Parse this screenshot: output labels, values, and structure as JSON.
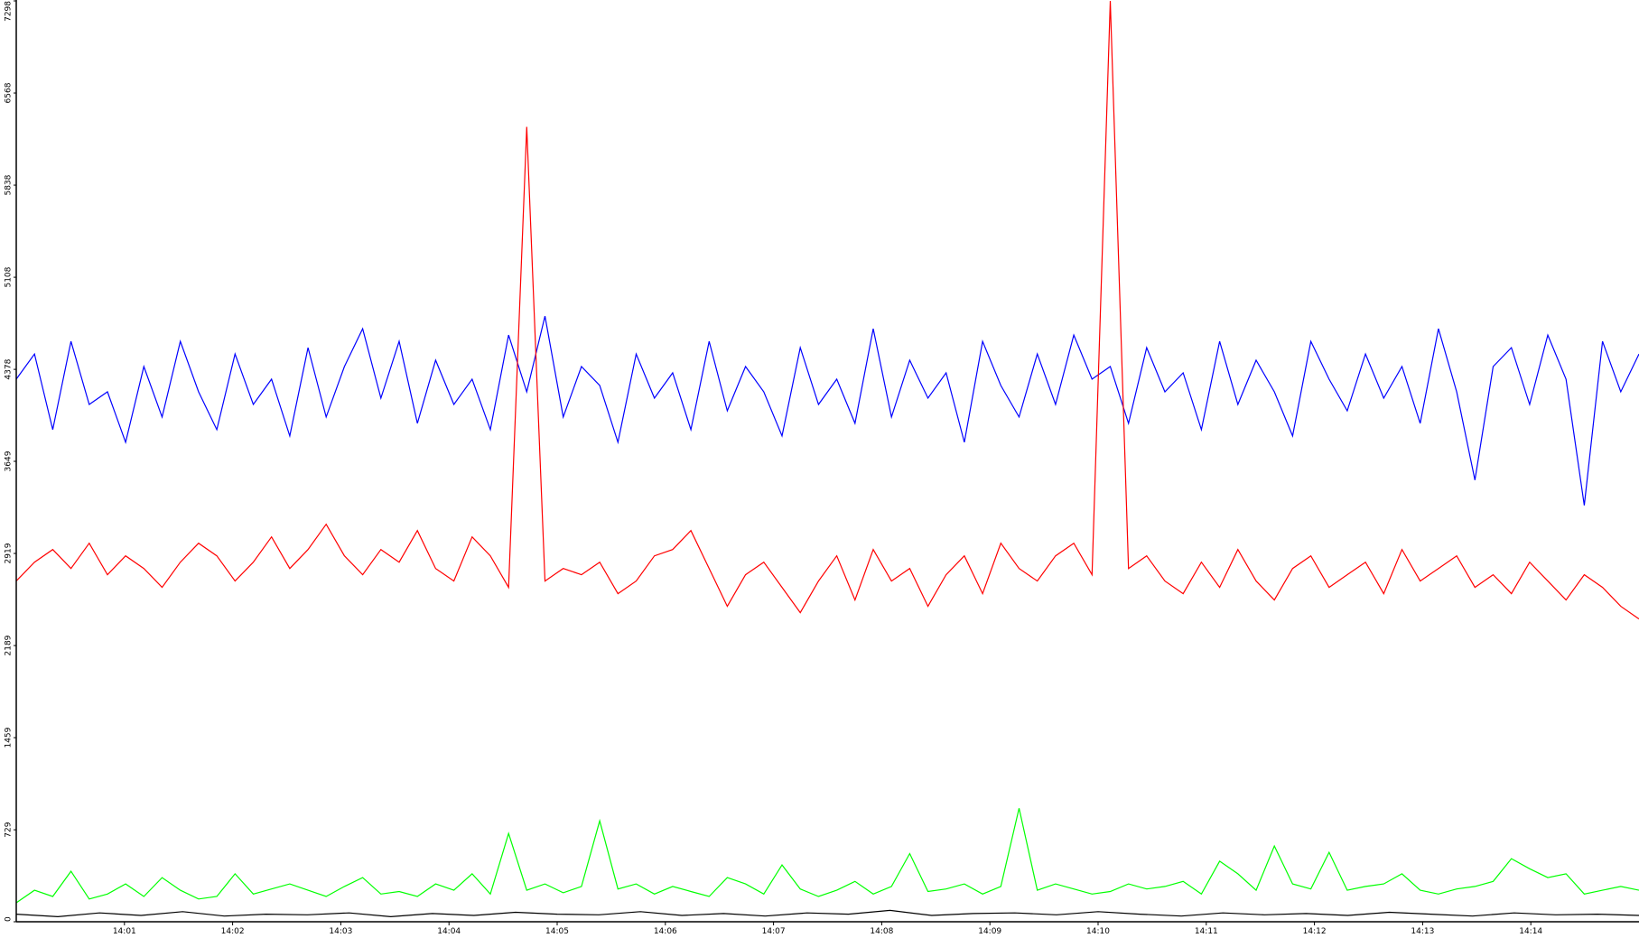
{
  "chart_data": {
    "type": "line",
    "ylim": [
      0,
      7298
    ],
    "yticks": [
      0,
      729,
      1459,
      2189,
      2919,
      3649,
      4378,
      5108,
      5838,
      6568,
      7298
    ],
    "xticks": [
      "14:01",
      "14:02",
      "14:03",
      "14:04",
      "14:05",
      "14:06",
      "14:07",
      "14:08",
      "14:09",
      "14:10",
      "14:11",
      "14:12",
      "14:13",
      "14:14"
    ],
    "series": [
      {
        "color": "#0000ff",
        "values": [
          4300,
          4500,
          3900,
          4600,
          4100,
          4200,
          3800,
          4400,
          4000,
          4600,
          4200,
          3900,
          4500,
          4100,
          4300,
          3850,
          4550,
          4000,
          4400,
          4700,
          4150,
          4600,
          3950,
          4450,
          4100,
          4300,
          3900,
          4650,
          4200,
          4800,
          4000,
          4400,
          4250,
          3800,
          4500,
          4150,
          4350,
          3900,
          4600,
          4050,
          4400,
          4200,
          3850,
          4550,
          4100,
          4300,
          3950,
          4700,
          4000,
          4450,
          4150,
          4350,
          3800,
          4600,
          4250,
          4000,
          4500,
          4100,
          4650,
          4300,
          4400,
          3950,
          4550,
          4200,
          4350,
          3900,
          4600,
          4100,
          4450,
          4200,
          3850,
          4600,
          4300,
          4050,
          4500,
          4150,
          4400,
          3950,
          4700,
          4200,
          3500,
          4400,
          4550,
          4100,
          4650,
          4300,
          3300,
          4600,
          4200,
          4500
        ]
      },
      {
        "color": "#ff0000",
        "values": [
          2700,
          2850,
          2950,
          2800,
          3000,
          2750,
          2900,
          2800,
          2650,
          2850,
          3000,
          2900,
          2700,
          2850,
          3050,
          2800,
          2950,
          3150,
          2900,
          2750,
          2950,
          2850,
          3100,
          2800,
          2700,
          3050,
          2900,
          2650,
          6300,
          2700,
          2800,
          2750,
          2850,
          2600,
          2700,
          2900,
          2950,
          3100,
          2800,
          2500,
          2750,
          2850,
          2650,
          2450,
          2700,
          2900,
          2550,
          2950,
          2700,
          2800,
          2500,
          2750,
          2900,
          2600,
          3000,
          2800,
          2700,
          2900,
          3000,
          2750,
          7298,
          2800,
          2900,
          2700,
          2600,
          2850,
          2650,
          2950,
          2700,
          2550,
          2800,
          2900,
          2650,
          2750,
          2850,
          2600,
          2950,
          2700,
          2800,
          2900,
          2650,
          2750,
          2600,
          2850,
          2700,
          2550,
          2750,
          2650,
          2500,
          2400
        ]
      },
      {
        "color": "#00ff00",
        "values": [
          150,
          250,
          200,
          400,
          180,
          220,
          300,
          200,
          350,
          250,
          180,
          200,
          380,
          220,
          260,
          300,
          250,
          200,
          280,
          350,
          220,
          240,
          200,
          300,
          250,
          380,
          220,
          700,
          250,
          300,
          230,
          280,
          800,
          260,
          300,
          220,
          280,
          240,
          200,
          350,
          300,
          220,
          450,
          260,
          200,
          250,
          320,
          220,
          280,
          540,
          240,
          260,
          300,
          220,
          280,
          900,
          250,
          300,
          260,
          220,
          240,
          300,
          260,
          280,
          320,
          220,
          480,
          380,
          250,
          600,
          300,
          260,
          550,
          250,
          280,
          300,
          380,
          250,
          220,
          260,
          280,
          320,
          500,
          420,
          350,
          380,
          220,
          250,
          280,
          250
        ]
      },
      {
        "color": "#000000",
        "values": [
          60,
          40,
          70,
          50,
          80,
          45,
          60,
          55,
          70,
          40,
          65,
          50,
          75,
          60,
          55,
          80,
          50,
          65,
          45,
          70,
          60,
          90,
          50,
          65,
          70,
          55,
          80,
          60,
          45,
          70,
          55,
          65,
          50,
          75,
          60,
          45,
          70,
          55,
          60,
          50
        ]
      }
    ]
  }
}
